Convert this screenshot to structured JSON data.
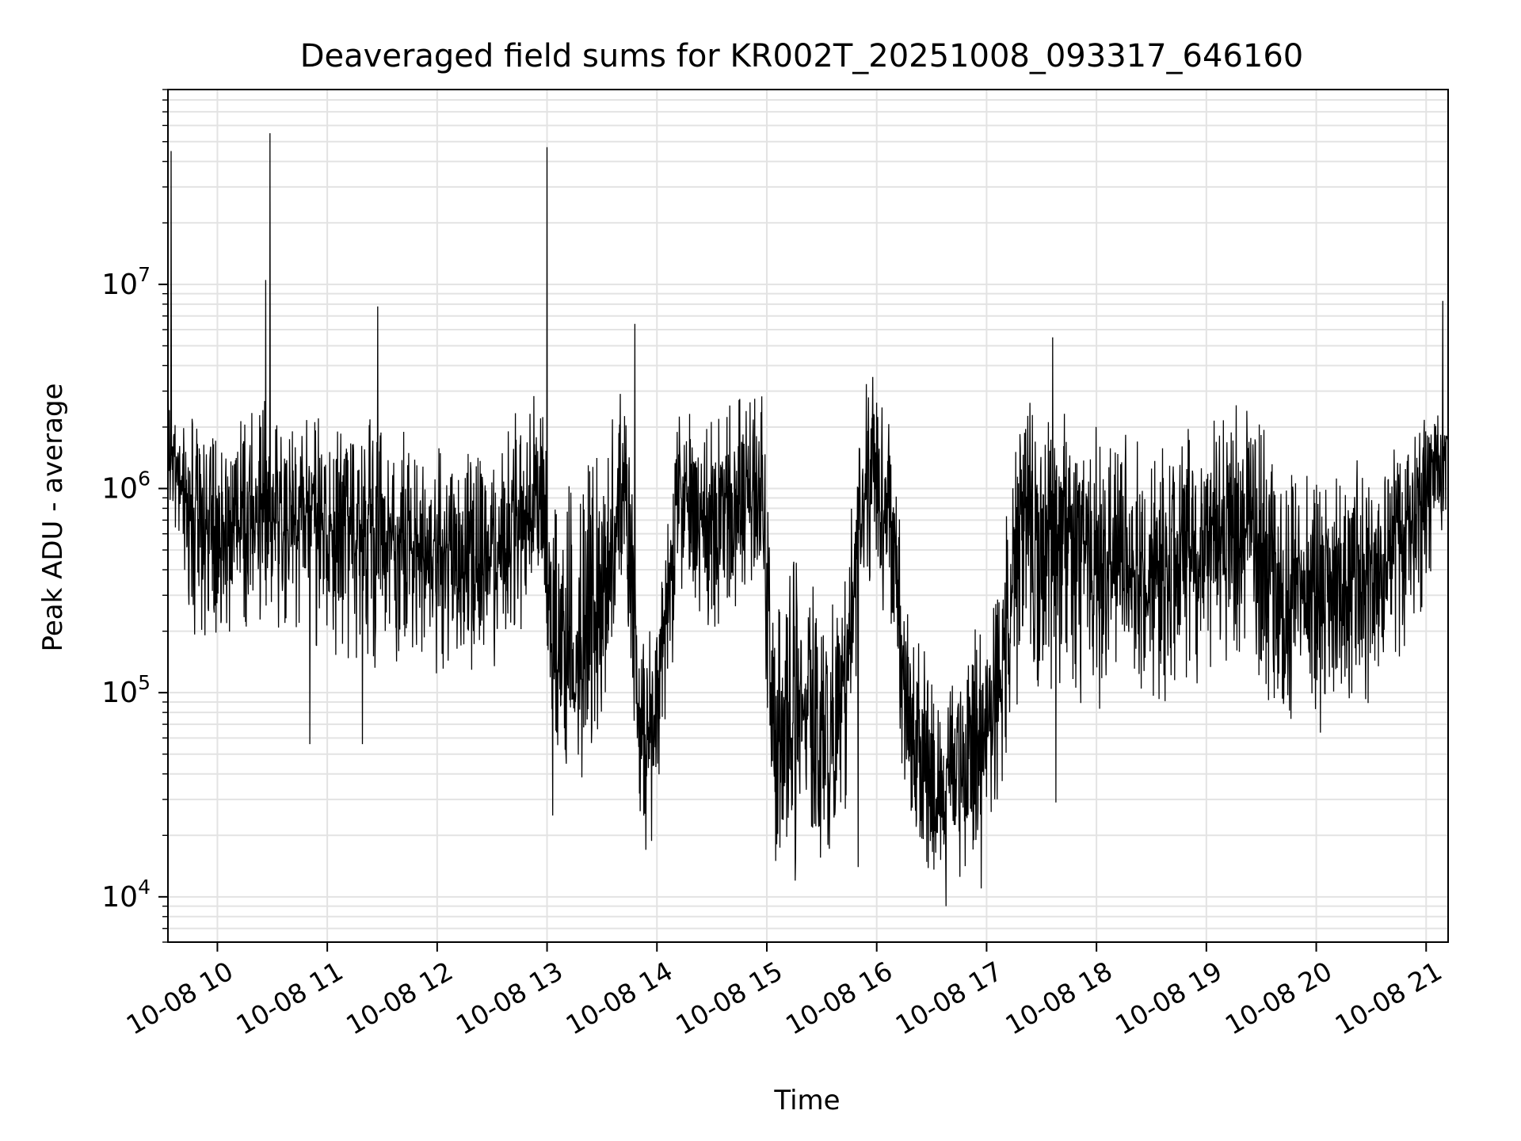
{
  "chart_data": {
    "type": "line",
    "title": "Deaveraged field sums for KR002T_20251008_093317_646160",
    "xlabel": "Time",
    "ylabel": "Peak ADU - average",
    "yscale": "log",
    "ylim": [
      6000,
      90000000
    ],
    "xlim_hours": [
      9.55,
      21.2
    ],
    "grid": true,
    "line_color": "#000000",
    "x_ticks": [
      {
        "hour": 10,
        "label": "10-08 10"
      },
      {
        "hour": 11,
        "label": "10-08 11"
      },
      {
        "hour": 12,
        "label": "10-08 12"
      },
      {
        "hour": 13,
        "label": "10-08 13"
      },
      {
        "hour": 14,
        "label": "10-08 14"
      },
      {
        "hour": 15,
        "label": "10-08 15"
      },
      {
        "hour": 16,
        "label": "10-08 16"
      },
      {
        "hour": 17,
        "label": "10-08 17"
      },
      {
        "hour": 18,
        "label": "10-08 18"
      },
      {
        "hour": 19,
        "label": "10-08 19"
      },
      {
        "hour": 20,
        "label": "10-08 20"
      },
      {
        "hour": 21,
        "label": "10-08 21"
      }
    ],
    "y_ticks": [
      {
        "value": 10000,
        "base": "10",
        "exp": "4"
      },
      {
        "value": 100000,
        "base": "10",
        "exp": "5"
      },
      {
        "value": 1000000,
        "base": "10",
        "exp": "6"
      },
      {
        "value": 10000000,
        "base": "10",
        "exp": "7"
      }
    ],
    "series": [
      {
        "name": "Deaveraged field sum",
        "envelope": {
          "note": "approximate median and fluctuation range of a dense noisy series",
          "hours": [
            9.55,
            9.6,
            9.8,
            10.0,
            10.5,
            11.0,
            11.5,
            12.0,
            12.5,
            12.8,
            12.95,
            13.05,
            13.3,
            13.5,
            13.7,
            13.85,
            13.95,
            14.2,
            14.5,
            14.95,
            15.05,
            15.3,
            15.6,
            15.7,
            15.85,
            16.0,
            16.1,
            16.2,
            16.3,
            16.6,
            16.9,
            17.1,
            17.3,
            17.6,
            18.0,
            18.5,
            19.0,
            19.4,
            19.6,
            20.0,
            20.5,
            20.9,
            21.1,
            21.2
          ],
          "median": [
            1500000,
            1300000,
            700000,
            700000,
            800000,
            700000,
            650000,
            450000,
            400000,
            700000,
            800000,
            150000,
            120000,
            250000,
            900000,
            90000,
            60000,
            900000,
            700000,
            1000000,
            90000,
            80000,
            60000,
            90000,
            900000,
            1200000,
            900000,
            300000,
            50000,
            30000,
            50000,
            80000,
            700000,
            800000,
            400000,
            400000,
            500000,
            600000,
            350000,
            300000,
            400000,
            700000,
            1500000,
            1600000
          ],
          "low": [
            900000,
            700000,
            180000,
            180000,
            200000,
            150000,
            120000,
            120000,
            120000,
            200000,
            250000,
            40000,
            35000,
            60000,
            300000,
            25000,
            18000,
            250000,
            200000,
            300000,
            18000,
            15000,
            14000,
            20000,
            200000,
            300000,
            200000,
            70000,
            15000,
            10000,
            14000,
            25000,
            100000,
            100000,
            80000,
            80000,
            100000,
            130000,
            60000,
            60000,
            90000,
            150000,
            500000,
            800000
          ],
          "high": [
            3500000,
            2600000,
            2600000,
            2600000,
            3000000,
            2500000,
            2200000,
            1600000,
            1700000,
            3000000,
            3500000,
            800000,
            1300000,
            2500000,
            3500000,
            300000,
            300000,
            2500000,
            2500000,
            3500000,
            400000,
            450000,
            300000,
            400000,
            3000000,
            3800000,
            3000000,
            800000,
            200000,
            180000,
            220000,
            300000,
            2800000,
            3200000,
            2000000,
            2000000,
            2800000,
            3200000,
            1500000,
            1200000,
            1500000,
            2000000,
            2600000,
            3000000
          ]
        },
        "spikes": [
          {
            "hour": 9.58,
            "value": 45000000
          },
          {
            "hour": 10.44,
            "value": 10500000
          },
          {
            "hour": 10.48,
            "value": 55000000
          },
          {
            "hour": 11.46,
            "value": 7800000
          },
          {
            "hour": 13.0,
            "value": 47000000
          },
          {
            "hour": 13.8,
            "value": 6400000
          },
          {
            "hour": 17.6,
            "value": 5500000
          },
          {
            "hour": 21.15,
            "value": 8300000
          }
        ],
        "dips": [
          {
            "hour": 10.84,
            "value": 56000
          },
          {
            "hour": 11.32,
            "value": 56000
          },
          {
            "hour": 13.05,
            "value": 25000
          },
          {
            "hour": 13.9,
            "value": 17000
          },
          {
            "hour": 15.08,
            "value": 15000
          },
          {
            "hour": 15.26,
            "value": 12000
          },
          {
            "hour": 15.83,
            "value": 14000
          },
          {
            "hour": 16.63,
            "value": 9000
          },
          {
            "hour": 16.95,
            "value": 11000
          },
          {
            "hour": 17.63,
            "value": 29000
          }
        ]
      }
    ]
  }
}
